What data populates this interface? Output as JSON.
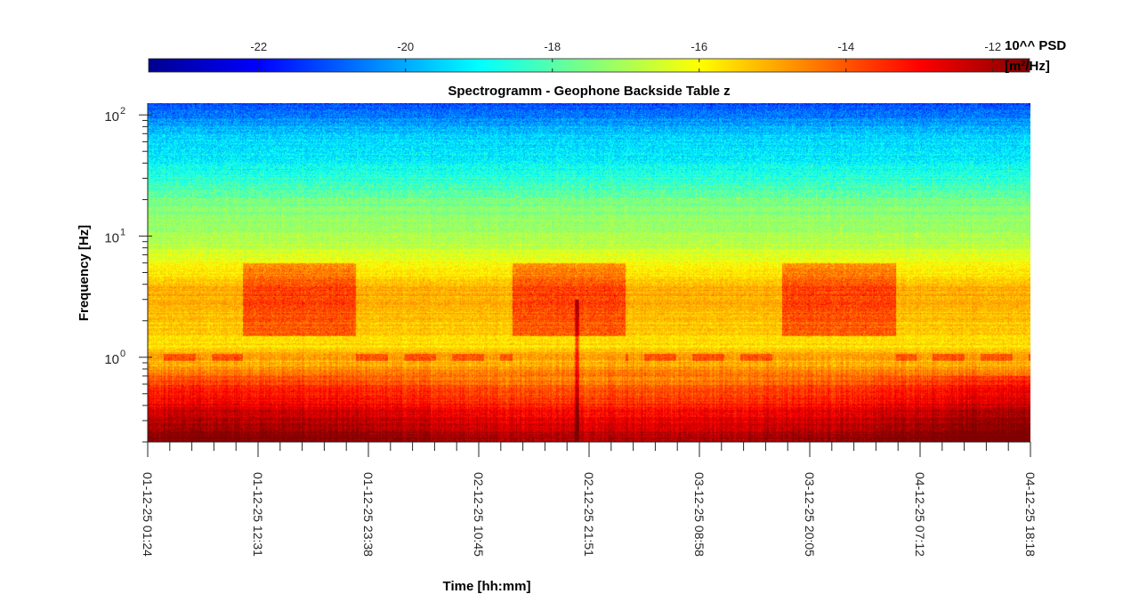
{
  "chart_data": {
    "type": "heatmap",
    "title": "Spectrogramm - Geophone Backside Table z",
    "xlabel": "Time [hh:mm]",
    "ylabel": "Frequency [Hz]",
    "y_scale": "log",
    "ylim": [
      0.2,
      125
    ],
    "y_ticks": [
      {
        "value": 1,
        "base": "10",
        "exp": "0"
      },
      {
        "value": 10,
        "base": "10",
        "exp": "1"
      },
      {
        "value": 100,
        "base": "10",
        "exp": "2"
      }
    ],
    "x_ticks": [
      "01-12-25 01:24",
      "01-12-25 12:31",
      "01-12-25 23:38",
      "02-12-25 10:45",
      "02-12-25 21:51",
      "03-12-25 08:58",
      "03-12-25 20:05",
      "04-12-25 07:12",
      "04-12-25 18:18"
    ],
    "colorbar": {
      "colormap": "jet",
      "range": [
        -23.5,
        -11.5
      ],
      "ticks": [
        "-22",
        "-20",
        "-18",
        "-16",
        "-14",
        "-12"
      ],
      "tick_values": [
        -22,
        -20,
        -18,
        -16,
        -14,
        -12
      ],
      "label_line1": "10^^ PSD",
      "label_line2": "[m²/Hz]"
    },
    "psd_profile": [
      {
        "f": 0.2,
        "v": -11.6
      },
      {
        "f": 0.3,
        "v": -12.4
      },
      {
        "f": 0.5,
        "v": -13.6
      },
      {
        "f": 0.7,
        "v": -14.3
      },
      {
        "f": 0.9,
        "v": -15.2
      },
      {
        "f": 1.0,
        "v": -14.7
      },
      {
        "f": 1.2,
        "v": -15.6
      },
      {
        "f": 2.0,
        "v": -15.3
      },
      {
        "f": 3.5,
        "v": -15.0
      },
      {
        "f": 6.0,
        "v": -16.1
      },
      {
        "f": 10.0,
        "v": -17.0
      },
      {
        "f": 20.0,
        "v": -17.6
      },
      {
        "f": 25.0,
        "v": -18.2
      },
      {
        "f": 40.0,
        "v": -19.0
      },
      {
        "f": 70.0,
        "v": -19.6
      },
      {
        "f": 100.0,
        "v": -20.6
      },
      {
        "f": 125.0,
        "v": -21.2
      }
    ],
    "grid": false
  }
}
